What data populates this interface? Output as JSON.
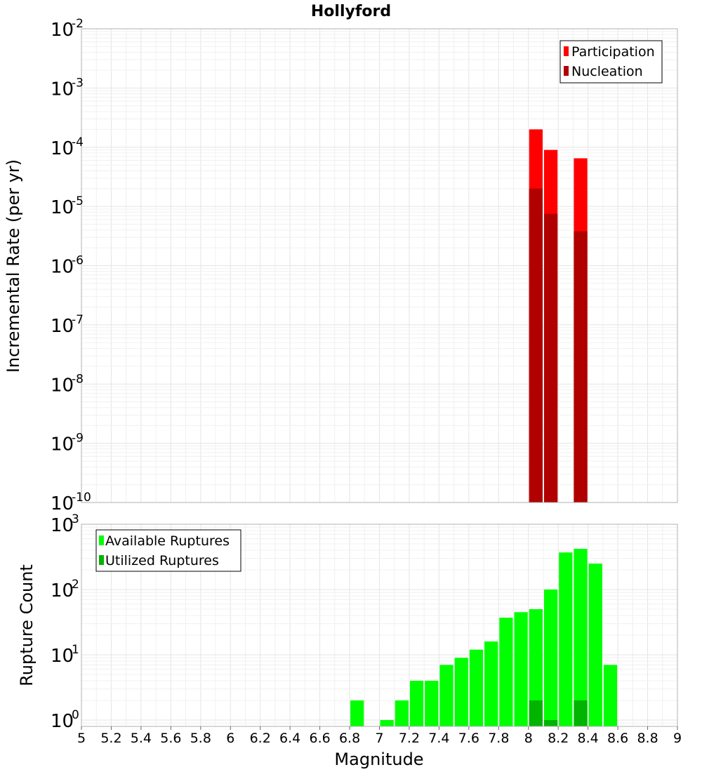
{
  "chart_data": [
    {
      "type": "bar",
      "title": "Hollyford",
      "ylabel": "Incremental Rate (per yr)",
      "xlabel": "",
      "yscale": "log",
      "ylim": [
        1e-10,
        0.01
      ],
      "xlim": [
        5,
        9
      ],
      "grid": true,
      "legend_position": "top-right",
      "bin_width": 0.1,
      "y_ticks": [
        {
          "base": "10",
          "exp": "-2"
        },
        {
          "base": "10",
          "exp": "-3"
        },
        {
          "base": "10",
          "exp": "-4"
        },
        {
          "base": "10",
          "exp": "-5"
        },
        {
          "base": "10",
          "exp": "-6"
        },
        {
          "base": "10",
          "exp": "-7"
        },
        {
          "base": "10",
          "exp": "-8"
        },
        {
          "base": "10",
          "exp": "-9"
        },
        {
          "base": "10",
          "exp": "-10"
        }
      ],
      "series": [
        {
          "name": "Participation",
          "color": "#ff0000",
          "x": [
            8.05,
            8.15,
            8.35
          ],
          "values": [
            0.0002,
            9e-05,
            6.5e-05
          ]
        },
        {
          "name": "Nucleation",
          "color": "#b00000",
          "x": [
            8.05,
            8.15,
            8.35
          ],
          "values": [
            2e-05,
            7.5e-06,
            3.8e-06
          ]
        }
      ]
    },
    {
      "type": "bar",
      "title": "",
      "ylabel": "Rupture Count",
      "xlabel": "Magnitude",
      "yscale": "log",
      "ylim": [
        0.8,
        1000
      ],
      "xlim": [
        5,
        9
      ],
      "grid": true,
      "legend_position": "top-left",
      "bin_width": 0.1,
      "x_tick_labels": [
        "5",
        "5.2",
        "5.4",
        "5.6",
        "5.8",
        "6",
        "6.2",
        "6.4",
        "6.6",
        "6.8",
        "7",
        "7.2",
        "7.4",
        "7.6",
        "7.8",
        "8",
        "8.2",
        "8.4",
        "8.6",
        "8.8",
        "9"
      ],
      "y_ticks": [
        {
          "base": "10",
          "exp": "3"
        },
        {
          "base": "10",
          "exp": "2"
        },
        {
          "base": "10",
          "exp": "1"
        },
        {
          "base": "10",
          "exp": "0"
        }
      ],
      "series": [
        {
          "name": "Available Ruptures",
          "color": "#00ff00",
          "x": [
            6.85,
            7.05,
            7.15,
            7.25,
            7.35,
            7.45,
            7.55,
            7.65,
            7.75,
            7.85,
            7.95,
            8.05,
            8.15,
            8.25,
            8.35,
            8.45,
            8.55
          ],
          "values": [
            2,
            1,
            2,
            4,
            4,
            7,
            9,
            12,
            16,
            37,
            45,
            50,
            100,
            370,
            420,
            250,
            7
          ]
        },
        {
          "name": "Utilized Ruptures",
          "color": "#00b400",
          "x": [
            8.05,
            8.15,
            8.35
          ],
          "values": [
            2,
            1,
            2
          ]
        }
      ]
    }
  ]
}
